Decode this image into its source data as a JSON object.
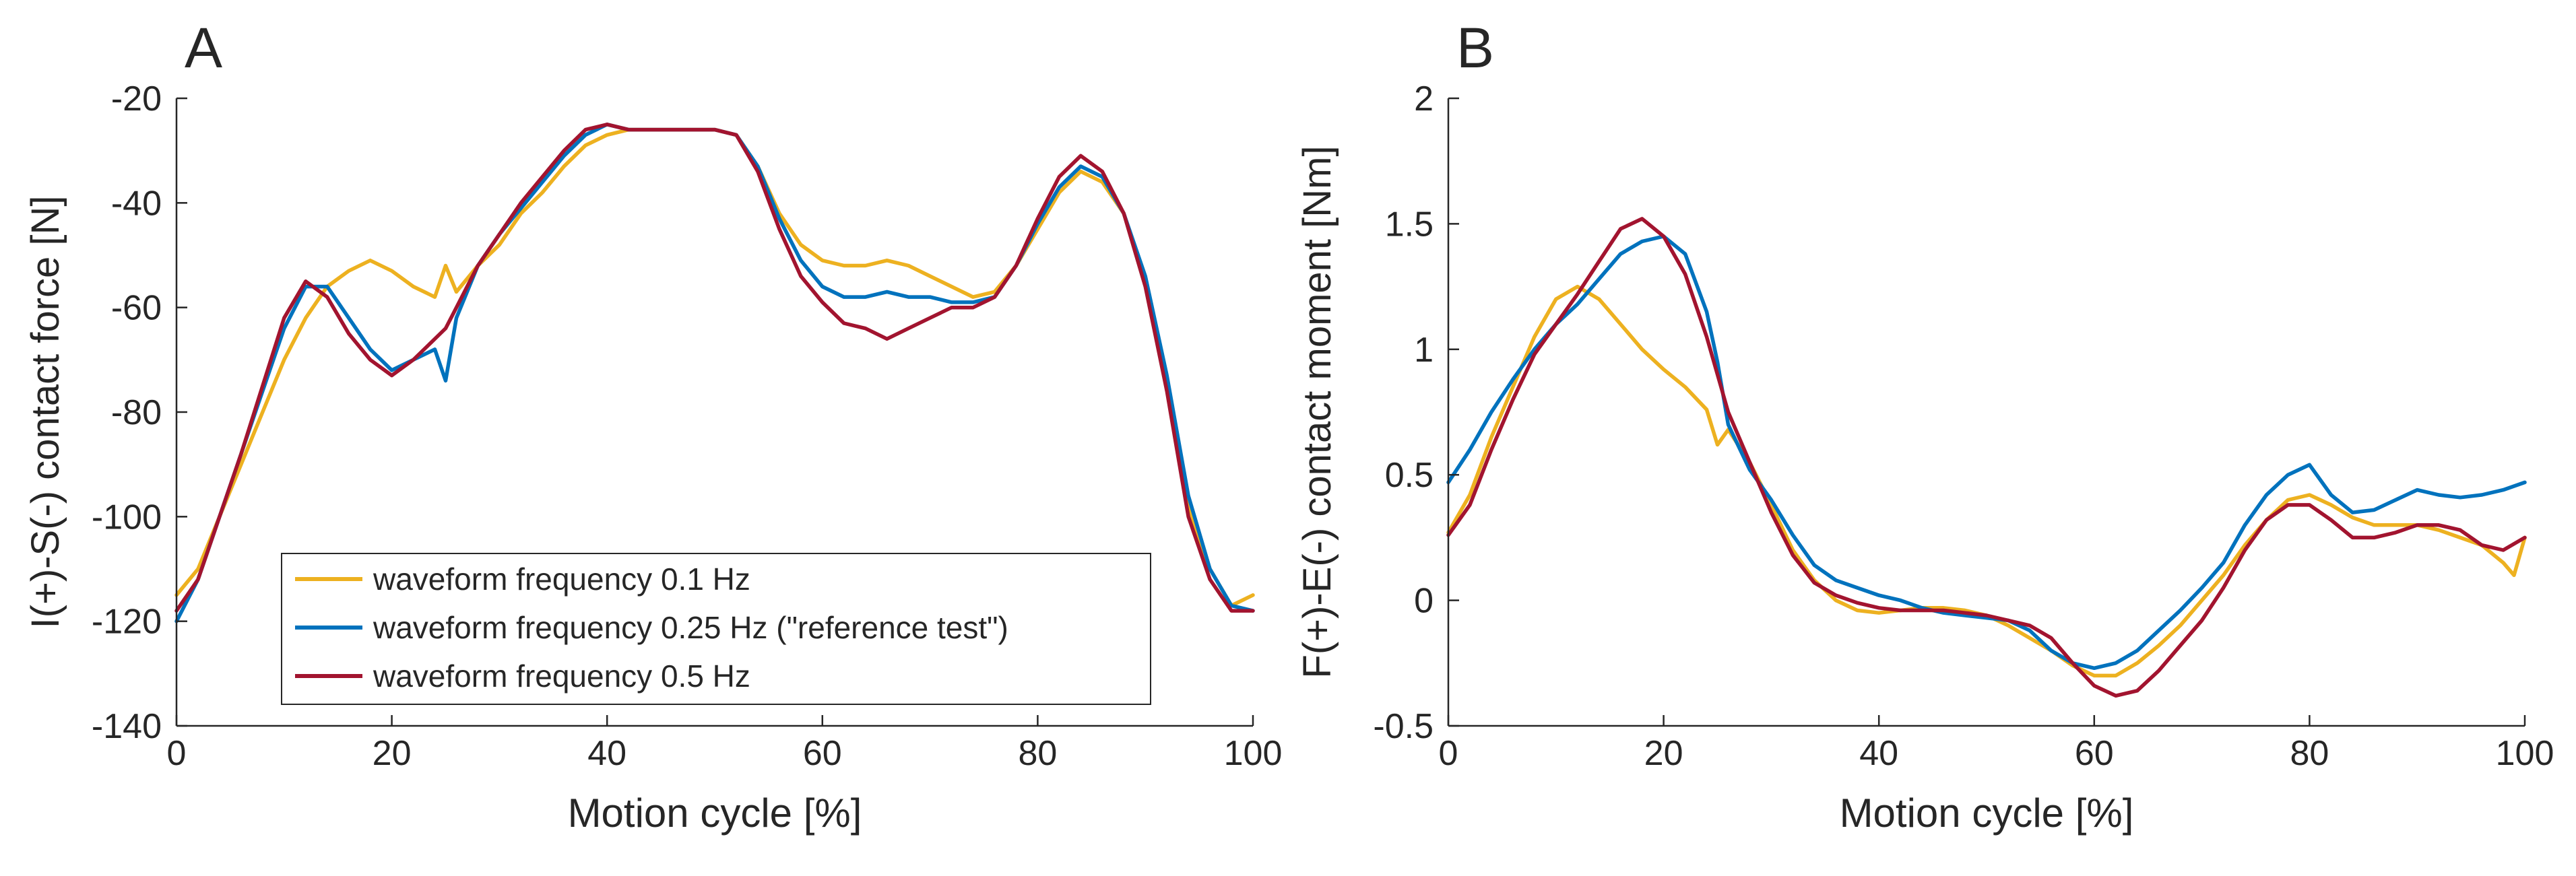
{
  "chart_data": [
    {
      "type": "line",
      "panel_label": "A",
      "xlabel": "Motion cycle [%]",
      "ylabel": "I(+)-S(-) contact force [N]",
      "xlim": [
        0,
        100
      ],
      "ylim": [
        -140,
        -20
      ],
      "xticks": [
        0,
        20,
        40,
        60,
        80,
        100
      ],
      "yticks": [
        -140,
        -120,
        -100,
        -80,
        -60,
        -40,
        -20
      ],
      "legend": "bottom-left",
      "grid": false,
      "series": [
        {
          "name": "waveform frequency 0.1 Hz",
          "color": "#EDB120",
          "x": [
            0,
            2,
            4,
            6,
            8,
            10,
            12,
            14,
            16,
            18,
            20,
            22,
            24,
            25,
            26,
            28,
            30,
            32,
            34,
            36,
            38,
            40,
            42,
            44,
            46,
            48,
            50,
            52,
            54,
            56,
            58,
            60,
            62,
            64,
            66,
            68,
            70,
            72,
            74,
            76,
            78,
            80,
            82,
            84,
            86,
            88,
            90,
            92,
            94,
            96,
            98,
            100
          ],
          "y": [
            -115,
            -110,
            -100,
            -90,
            -80,
            -70,
            -62,
            -56,
            -53,
            -51,
            -53,
            -56,
            -58,
            -52,
            -57,
            -52,
            -48,
            -42,
            -38,
            -33,
            -29,
            -27,
            -26,
            -26,
            -26,
            -26,
            -26,
            -27,
            -33,
            -42,
            -48,
            -51,
            -52,
            -52,
            -51,
            -52,
            -54,
            -56,
            -58,
            -57,
            -52,
            -45,
            -38,
            -34,
            -36,
            -42,
            -55,
            -75,
            -98,
            -110,
            -117,
            -115
          ]
        },
        {
          "name": "waveform frequency 0.25 Hz (\"reference test\")",
          "color": "#0072BD",
          "x": [
            0,
            2,
            4,
            6,
            8,
            10,
            12,
            14,
            16,
            18,
            20,
            22,
            24,
            25,
            26,
            28,
            30,
            32,
            34,
            36,
            38,
            40,
            42,
            44,
            46,
            48,
            50,
            52,
            54,
            56,
            58,
            60,
            62,
            64,
            66,
            68,
            70,
            72,
            74,
            76,
            78,
            80,
            82,
            84,
            86,
            88,
            90,
            92,
            94,
            96,
            98,
            100
          ],
          "y": [
            -120,
            -112,
            -100,
            -88,
            -76,
            -64,
            -56,
            -56,
            -62,
            -68,
            -72,
            -70,
            -68,
            -74,
            -62,
            -52,
            -46,
            -41,
            -36,
            -31,
            -27,
            -25,
            -26,
            -26,
            -26,
            -26,
            -26,
            -27,
            -33,
            -43,
            -51,
            -56,
            -58,
            -58,
            -57,
            -58,
            -58,
            -59,
            -59,
            -58,
            -52,
            -44,
            -37,
            -33,
            -35,
            -42,
            -54,
            -73,
            -96,
            -110,
            -117,
            -118
          ]
        },
        {
          "name": "waveform frequency 0.5 Hz",
          "color": "#A2142F",
          "x": [
            0,
            2,
            4,
            6,
            8,
            10,
            12,
            14,
            16,
            18,
            20,
            22,
            24,
            25,
            26,
            28,
            30,
            32,
            34,
            36,
            38,
            40,
            42,
            44,
            46,
            48,
            50,
            52,
            54,
            56,
            58,
            60,
            62,
            64,
            66,
            68,
            70,
            72,
            74,
            76,
            78,
            80,
            82,
            84,
            86,
            88,
            90,
            92,
            94,
            96,
            98,
            100
          ],
          "y": [
            -118,
            -112,
            -100,
            -88,
            -75,
            -62,
            -55,
            -58,
            -65,
            -70,
            -73,
            -70,
            -66,
            -64,
            -60,
            -52,
            -46,
            -40,
            -35,
            -30,
            -26,
            -25,
            -26,
            -26,
            -26,
            -26,
            -26,
            -27,
            -34,
            -45,
            -54,
            -59,
            -63,
            -64,
            -66,
            -64,
            -62,
            -60,
            -60,
            -58,
            -52,
            -43,
            -35,
            -31,
            -34,
            -42,
            -56,
            -76,
            -100,
            -112,
            -118,
            -118
          ]
        }
      ]
    },
    {
      "type": "line",
      "panel_label": "B",
      "xlabel": "Motion cycle [%]",
      "ylabel": "F(+)-E(-) contact moment [Nm]",
      "xlim": [
        0,
        100
      ],
      "ylim": [
        -0.5,
        2
      ],
      "xticks": [
        0,
        20,
        40,
        60,
        80,
        100
      ],
      "yticks": [
        -0.5,
        0,
        0.5,
        1,
        1.5,
        2
      ],
      "grid": false,
      "series": [
        {
          "name": "waveform frequency 0.1 Hz",
          "color": "#EDB120",
          "x": [
            0,
            2,
            4,
            6,
            8,
            10,
            12,
            14,
            16,
            18,
            20,
            22,
            24,
            25,
            26,
            28,
            30,
            32,
            34,
            36,
            38,
            40,
            42,
            44,
            46,
            48,
            50,
            52,
            54,
            56,
            58,
            60,
            62,
            64,
            66,
            68,
            70,
            72,
            74,
            76,
            78,
            80,
            82,
            84,
            86,
            88,
            90,
            92,
            94,
            96,
            98,
            99,
            100
          ],
          "y": [
            0.27,
            0.42,
            0.65,
            0.85,
            1.05,
            1.2,
            1.25,
            1.2,
            1.1,
            1.0,
            0.92,
            0.85,
            0.76,
            0.62,
            0.68,
            0.55,
            0.38,
            0.2,
            0.08,
            0.0,
            -0.04,
            -0.05,
            -0.04,
            -0.03,
            -0.03,
            -0.04,
            -0.06,
            -0.1,
            -0.15,
            -0.2,
            -0.26,
            -0.3,
            -0.3,
            -0.25,
            -0.18,
            -0.1,
            0.0,
            0.1,
            0.22,
            0.32,
            0.4,
            0.42,
            0.38,
            0.33,
            0.3,
            0.3,
            0.3,
            0.28,
            0.25,
            0.22,
            0.15,
            0.1,
            0.25
          ]
        },
        {
          "name": "waveform frequency 0.25 Hz (\"reference test\")",
          "color": "#0072BD",
          "x": [
            0,
            2,
            4,
            6,
            8,
            10,
            12,
            14,
            16,
            18,
            20,
            22,
            24,
            25,
            26,
            28,
            30,
            32,
            34,
            36,
            38,
            40,
            42,
            44,
            46,
            48,
            50,
            52,
            54,
            56,
            58,
            60,
            62,
            64,
            66,
            68,
            70,
            72,
            74,
            76,
            78,
            80,
            82,
            84,
            86,
            88,
            90,
            92,
            94,
            96,
            98,
            100
          ],
          "y": [
            0.47,
            0.6,
            0.75,
            0.88,
            1.0,
            1.1,
            1.18,
            1.28,
            1.38,
            1.43,
            1.45,
            1.38,
            1.15,
            0.95,
            0.7,
            0.52,
            0.4,
            0.26,
            0.14,
            0.08,
            0.05,
            0.02,
            0.0,
            -0.03,
            -0.05,
            -0.06,
            -0.07,
            -0.08,
            -0.12,
            -0.2,
            -0.25,
            -0.27,
            -0.25,
            -0.2,
            -0.12,
            -0.04,
            0.05,
            0.15,
            0.3,
            0.42,
            0.5,
            0.54,
            0.42,
            0.35,
            0.36,
            0.4,
            0.44,
            0.42,
            0.41,
            0.42,
            0.44,
            0.47
          ]
        },
        {
          "name": "waveform frequency 0.5 Hz",
          "color": "#A2142F",
          "x": [
            0,
            2,
            4,
            6,
            8,
            10,
            12,
            14,
            16,
            18,
            20,
            22,
            24,
            25,
            26,
            28,
            30,
            32,
            34,
            36,
            38,
            40,
            42,
            44,
            46,
            48,
            50,
            52,
            54,
            56,
            58,
            60,
            62,
            64,
            66,
            68,
            70,
            72,
            74,
            76,
            78,
            80,
            82,
            84,
            86,
            88,
            90,
            92,
            94,
            96,
            98,
            100
          ],
          "y": [
            0.26,
            0.38,
            0.6,
            0.8,
            0.98,
            1.1,
            1.22,
            1.35,
            1.48,
            1.52,
            1.45,
            1.3,
            1.05,
            0.9,
            0.75,
            0.55,
            0.35,
            0.18,
            0.07,
            0.02,
            -0.01,
            -0.03,
            -0.04,
            -0.04,
            -0.04,
            -0.05,
            -0.06,
            -0.08,
            -0.1,
            -0.15,
            -0.25,
            -0.34,
            -0.38,
            -0.36,
            -0.28,
            -0.18,
            -0.08,
            0.05,
            0.2,
            0.32,
            0.38,
            0.38,
            0.32,
            0.25,
            0.25,
            0.27,
            0.3,
            0.3,
            0.28,
            0.22,
            0.2,
            0.25
          ]
        }
      ]
    }
  ]
}
